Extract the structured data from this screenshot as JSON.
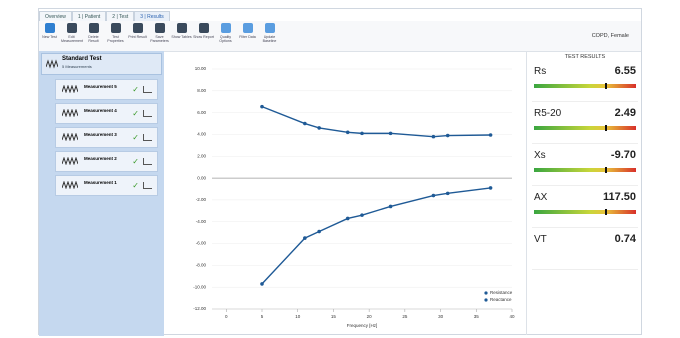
{
  "tabs": [
    "Overview",
    "1 | Patient",
    "2 | Test",
    "3 | Results"
  ],
  "toolbar": [
    "New Test",
    "Edit Measurement",
    "Delete Result",
    "Test Properties",
    "Print Result",
    "Save Parameters",
    "Show Tables",
    "Show Report",
    "Quality Options",
    "Filter Data",
    "Update Baseline"
  ],
  "patient": "COPD, Female",
  "sidebar": {
    "test": {
      "title": "Standard Test",
      "subtitle": "5 Measurements"
    },
    "items": [
      "Measurement 5",
      "Measurement 4",
      "Measurement 3",
      "Measurement 2",
      "Measurement 1"
    ]
  },
  "chart_data": {
    "type": "line",
    "xlabel": "Frequency [Hz]",
    "x": [
      5,
      11,
      13,
      17,
      19,
      23,
      29,
      31,
      37
    ],
    "series": [
      {
        "name": "Resistance",
        "color": "#1f5a96",
        "values": [
          6.55,
          5.0,
          4.6,
          4.2,
          4.1,
          4.1,
          3.8,
          3.9,
          3.95
        ]
      },
      {
        "name": "Reactance",
        "color": "#1f5a96",
        "values": [
          -9.7,
          -5.5,
          -4.9,
          -3.7,
          -3.4,
          -2.6,
          -1.6,
          -1.4,
          -0.9
        ]
      }
    ],
    "xlim": [
      -2,
      40
    ],
    "xticks": [
      0,
      5,
      10,
      15,
      20,
      25,
      30,
      35,
      40
    ],
    "ylim": [
      -12,
      10
    ],
    "yticks": [
      {
        "value": 10,
        "label": "10.00"
      },
      {
        "value": 8,
        "label": "8.00"
      },
      {
        "value": 6,
        "label": "6.00"
      },
      {
        "value": 4,
        "label": "4.00"
      },
      {
        "value": 2,
        "label": "2.00"
      },
      {
        "value": 0,
        "label": "0.00"
      },
      {
        "value": -2,
        "label": "-2.00"
      },
      {
        "value": -4,
        "label": "-4.00"
      },
      {
        "value": -6,
        "label": "-6.00"
      },
      {
        "value": -8,
        "label": "-8.00"
      },
      {
        "value": -10,
        "label": "-10.00"
      },
      {
        "value": -12,
        "label": "-12.00"
      }
    ],
    "grid": true,
    "legend": "lower right"
  },
  "results": {
    "title": "TEST RESULTS",
    "items": [
      {
        "name": "Rs",
        "value": "6.55"
      },
      {
        "name": "R5-20",
        "value": "2.49"
      },
      {
        "name": "Xs",
        "value": "-9.70"
      },
      {
        "name": "AX",
        "value": "117.50"
      },
      {
        "name": "VT",
        "value": "0.74"
      }
    ]
  }
}
